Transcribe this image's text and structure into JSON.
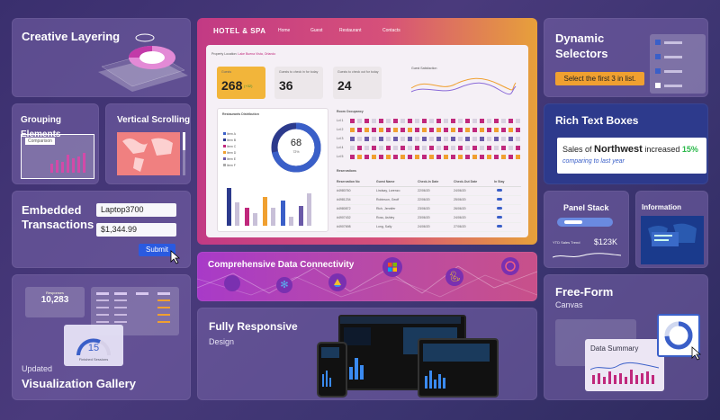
{
  "panels": {
    "creative_layering": {
      "title": "Creative Layering"
    },
    "grouping": {
      "title": "Grouping Elements",
      "tag": "Comparison"
    },
    "vertical_scrolling": {
      "title": "Vertical Scrolling"
    },
    "embedded": {
      "title_line1": "Embedded",
      "title_line2": "Transactions",
      "field1": "Laptop3700",
      "field2": "$1,344.99",
      "submit": "Submit"
    },
    "viz_gallery": {
      "subtitle": "Updated",
      "title": "Visualization Gallery",
      "stat_label": "Responses",
      "stat_value": "10,283",
      "gauge_value": "15",
      "gauge_label": "Finished Sessions"
    },
    "dynamic_selectors": {
      "title_line1": "Dynamic",
      "title_line2": "Selectors",
      "tooltip": "Select the first 3 in list."
    },
    "rich_text": {
      "title": "Rich Text Boxes",
      "prefix": "Sales of ",
      "bold": "Northwest",
      "mid": " increased ",
      "pct": "15%",
      "line2": "comparing to last year"
    },
    "panel_stack": {
      "title": "Panel Stack",
      "trend_label": "YTD Sales Trend",
      "trend_value": "$123K"
    },
    "info_window": {
      "title": "Information Window"
    },
    "data_connectivity": {
      "title": "Comprehensive Data Connectivity"
    },
    "responsive": {
      "title": "Fully Responsive",
      "subtitle": "Design"
    },
    "freeform": {
      "title": "Free-Form",
      "subtitle": "Canvas",
      "card_title": "Data Summary"
    }
  },
  "dashboard": {
    "brand": "HOTEL & SPA",
    "nav": [
      "Home",
      "Guest",
      "Restaurant",
      "Contacts"
    ],
    "location_label": "Property Location:",
    "location_value": "Lake Buena Vista, Orlando",
    "kpis": [
      {
        "label": "Guests",
        "value": "268",
        "change": "(+32)"
      },
      {
        "label": "Guests to check in for today",
        "value": "36"
      },
      {
        "label": "Guests to check out for today",
        "value": "24"
      }
    ],
    "satisfaction_label": "Guest Satisfaction",
    "restaurants_title": "Restaurants Distribution",
    "donut_value": "68",
    "donut_pct": "72%",
    "legend": [
      "Item A",
      "Item B",
      "Item C",
      "Item D",
      "Item E",
      "Item F"
    ],
    "occupancy_title": "Room Occupancy",
    "occupancy_rows": [
      "Lvl 1",
      "Lvl 2",
      "Lvl 3",
      "Lvl 4",
      "Lvl 5"
    ],
    "reservations_title": "Reservations",
    "res_headers": [
      "Reservation No",
      "Guest Name",
      "Check-In Date",
      "Check-Out Date",
      "In Stay"
    ],
    "res_rows": [
      [
        "#4980760",
        "Lindsay, Lorenzo",
        "22/06/20",
        "24/06/20"
      ],
      [
        "#4981234",
        "Robinson, Geoff",
        "22/06/20",
        "25/06/20"
      ],
      [
        "#4980872",
        "Rich, Jennifer",
        "23/06/20",
        "26/06/20"
      ],
      [
        "#4907432",
        "Ross, Ashley",
        "23/06/20",
        "24/06/20"
      ],
      [
        "#4907698",
        "Long, Sally",
        "24/06/20",
        "27/06/20"
      ]
    ]
  },
  "colors": {
    "accent_pink": "#d0288c",
    "accent_orange": "#f0a030",
    "accent_blue": "#3a5fc8",
    "green": "#3ac84a"
  }
}
